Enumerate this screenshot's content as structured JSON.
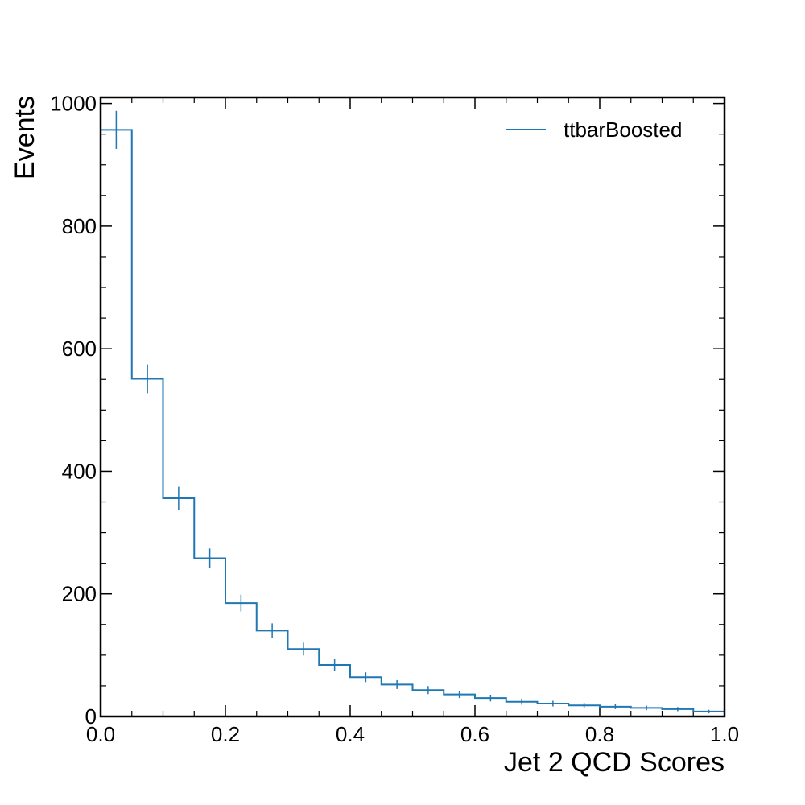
{
  "chart_data": {
    "type": "histogram-step",
    "title": "",
    "xlabel": "Jet 2 QCD Scores",
    "ylabel": "Events",
    "xlim": [
      0.0,
      1.0
    ],
    "ylim": [
      0,
      1010
    ],
    "x_ticks": [
      0.0,
      0.2,
      0.4,
      0.6,
      0.8,
      1.0
    ],
    "x_tick_labels": [
      "0.0",
      "0.2",
      "0.4",
      "0.6",
      "0.8",
      "1.0"
    ],
    "y_ticks": [
      0,
      200,
      400,
      600,
      800,
      1000
    ],
    "y_tick_labels": [
      "0",
      "200",
      "400",
      "600",
      "800",
      "1000"
    ],
    "grid": false,
    "legend_position": "top-right",
    "bin_edges": [
      0.0,
      0.05,
      0.1,
      0.15,
      0.2,
      0.25,
      0.3,
      0.35,
      0.4,
      0.45,
      0.5,
      0.55,
      0.6,
      0.65,
      0.7,
      0.75,
      0.8,
      0.85,
      0.9,
      0.95,
      1.0
    ],
    "series": [
      {
        "name": "ttbarBoosted",
        "color": "#1f77b4",
        "values": [
          957,
          551,
          356,
          258,
          185,
          140,
          110,
          84,
          64,
          52,
          43,
          36,
          30,
          24,
          21,
          18,
          16,
          14,
          12,
          8
        ]
      }
    ]
  }
}
